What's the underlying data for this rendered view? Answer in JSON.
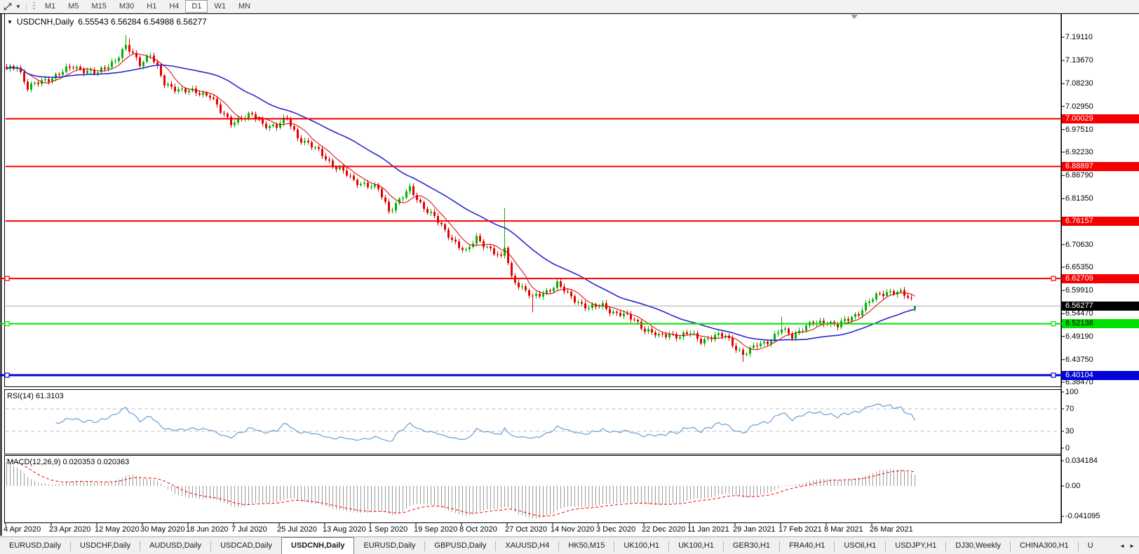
{
  "toolbar": {
    "timeframes": [
      {
        "label": "M1",
        "active": false
      },
      {
        "label": "M5",
        "active": false
      },
      {
        "label": "M15",
        "active": false
      },
      {
        "label": "M30",
        "active": false
      },
      {
        "label": "H1",
        "active": false
      },
      {
        "label": "H4",
        "active": false
      },
      {
        "label": "D1",
        "active": true
      },
      {
        "label": "W1",
        "active": false
      },
      {
        "label": "MN",
        "active": false
      }
    ]
  },
  "chart": {
    "collapse_arrow": "▼",
    "symbol_period": "USDCNH,Daily"
  },
  "chart_data": {
    "type": "candlestick",
    "title": "USDCNH,Daily",
    "current_bar": {
      "open": "6.55543",
      "high": "6.56284",
      "low": "6.54988",
      "close": "6.56277"
    },
    "up_color": "#00b400",
    "down_color": "#e60000",
    "y_axis_ticks": [
      "7.19110",
      "7.13670",
      "7.08230",
      "7.02950",
      "6.97510",
      "6.92230",
      "6.86790",
      "6.81350",
      "6.76070",
      "6.70630",
      "6.65350",
      "6.59910",
      "6.54470",
      "6.49190",
      "6.43750",
      "6.38470"
    ],
    "x_labels": [
      "4 Apr 2020",
      "23 Apr 2020",
      "12 May 2020",
      "30 May 2020",
      "18 Jun 2020",
      "7 Jul 2020",
      "25 Jul 2020",
      "13 Aug 2020",
      "1 Sep 2020",
      "19 Sep 2020",
      "8 Oct 2020",
      "27 Oct 2020",
      "14 Nov 2020",
      "3 Dec 2020",
      "22 Dec 2020",
      "11 Jan 2021",
      "29 Jan 2021",
      "17 Feb 2021",
      "8 Mar 2021",
      "26 Mar 2021"
    ],
    "num_candles": 260,
    "candles_per_x_label": 13,
    "close_trajectory": [
      [
        0,
        7.114
      ],
      [
        3,
        7.125
      ],
      [
        6,
        7.073
      ],
      [
        13,
        7.098
      ],
      [
        19,
        7.122
      ],
      [
        26,
        7.106
      ],
      [
        31,
        7.139
      ],
      [
        34,
        7.168
      ],
      [
        36,
        7.15
      ],
      [
        38,
        7.13
      ],
      [
        41,
        7.152
      ],
      [
        45,
        7.081
      ],
      [
        51,
        7.065
      ],
      [
        58,
        7.057
      ],
      [
        61,
        7.016
      ],
      [
        64,
        6.991
      ],
      [
        67,
        7.004
      ],
      [
        70,
        7.008
      ],
      [
        73,
        6.988
      ],
      [
        77,
        6.983
      ],
      [
        80,
        7.0
      ],
      [
        83,
        6.958
      ],
      [
        86,
        6.942
      ],
      [
        90,
        6.917
      ],
      [
        93,
        6.893
      ],
      [
        96,
        6.876
      ],
      [
        99,
        6.855
      ],
      [
        102,
        6.849
      ],
      [
        106,
        6.835
      ],
      [
        109,
        6.786
      ],
      [
        112,
        6.811
      ],
      [
        115,
        6.835
      ],
      [
        118,
        6.803
      ],
      [
        122,
        6.77
      ],
      [
        125,
        6.737
      ],
      [
        128,
        6.712
      ],
      [
        131,
        6.688
      ],
      [
        134,
        6.721
      ],
      [
        138,
        6.696
      ],
      [
        141,
        6.672
      ],
      [
        142,
        6.7
      ],
      [
        144,
        6.63
      ],
      [
        147,
        6.606
      ],
      [
        150,
        6.581
      ],
      [
        154,
        6.598
      ],
      [
        157,
        6.614
      ],
      [
        160,
        6.59
      ],
      [
        163,
        6.573
      ],
      [
        166,
        6.557
      ],
      [
        170,
        6.565
      ],
      [
        173,
        6.548
      ],
      [
        176,
        6.54
      ],
      [
        179,
        6.532
      ],
      [
        182,
        6.508
      ],
      [
        186,
        6.491
      ],
      [
        189,
        6.499
      ],
      [
        192,
        6.491
      ],
      [
        195,
        6.499
      ],
      [
        198,
        6.483
      ],
      [
        202,
        6.491
      ],
      [
        205,
        6.494
      ],
      [
        208,
        6.466
      ],
      [
        210,
        6.448
      ],
      [
        212,
        6.458
      ],
      [
        214,
        6.474
      ],
      [
        218,
        6.483
      ],
      [
        221,
        6.508
      ],
      [
        224,
        6.494
      ],
      [
        227,
        6.511
      ],
      [
        230,
        6.521
      ],
      [
        234,
        6.527
      ],
      [
        237,
        6.516
      ],
      [
        240,
        6.532
      ],
      [
        243,
        6.548
      ],
      [
        246,
        6.573
      ],
      [
        249,
        6.59
      ],
      [
        252,
        6.598
      ],
      [
        255,
        6.593
      ],
      [
        258,
        6.576
      ],
      [
        259,
        6.563
      ]
    ],
    "spikes": [
      {
        "i": 34,
        "high": 7.196
      },
      {
        "i": 35,
        "high": 7.188
      },
      {
        "i": 142,
        "high": 6.792
      },
      {
        "i": 150,
        "low": 6.548
      },
      {
        "i": 210,
        "low": 6.432
      },
      {
        "i": 221,
        "high": 6.538
      },
      {
        "i": 251,
        "high": 6.603
      }
    ],
    "horizontal_lines": [
      {
        "price": "7.00029",
        "color": "#f40000",
        "text_color": "#ffffff",
        "thickness": 2,
        "full_width": false,
        "selected": false
      },
      {
        "price": "6.88897",
        "color": "#f40000",
        "text_color": "#ffffff",
        "thickness": 2,
        "full_width": false,
        "selected": false
      },
      {
        "price": "6.76157",
        "color": "#f40000",
        "text_color": "#ffffff",
        "thickness": 2,
        "full_width": false,
        "selected": false
      },
      {
        "price": "6.62709",
        "color": "#f40000",
        "text_color": "#ffffff",
        "thickness": 2,
        "full_width": true,
        "selected": true
      },
      {
        "price": "6.52138",
        "color": "#00e000",
        "text_color": "#000000",
        "thickness": 2,
        "full_width": true,
        "selected": true
      },
      {
        "price": "6.40104",
        "color": "#0202d6",
        "text_color": "#ffffff",
        "thickness": 3,
        "full_width": true,
        "selected": true
      }
    ],
    "current_price_line": {
      "price": "6.56277",
      "line_color": "#ababab",
      "badge_bg": "#000000",
      "badge_text": "#ffffff"
    },
    "moving_averages": [
      {
        "name": "fast-ma",
        "period": 7,
        "color": "#d40000",
        "width": 1
      },
      {
        "name": "slow-ma",
        "period": 32,
        "color": "#2727cc",
        "width": 1.6
      }
    ],
    "rsi": {
      "label": "RSI(14) 61.3103",
      "period": 14,
      "current": 61.3103,
      "color": "#5d96d0",
      "axis_levels": [
        100,
        70,
        30,
        0
      ],
      "dashed_levels": [
        70,
        30
      ],
      "level_color": "#bdbdbd"
    },
    "macd": {
      "label": "MACD(12,26,9) 0.020353 0.020363",
      "fast": 12,
      "slow": 26,
      "signal": 9,
      "main_value": 0.020353,
      "signal_value": 0.020363,
      "axis_max": 0.034184,
      "axis_mid": 0.0,
      "axis_min": -0.041095,
      "axis_labels": [
        "0.034184",
        "0.00",
        "-0.041095"
      ],
      "bar_color": "#9b9b9b",
      "signal_color": "#ff0000"
    }
  },
  "tabs": {
    "active_index": 4,
    "items": [
      "EURUSD,Daily",
      "USDCHF,Daily",
      "AUDUSD,Daily",
      "USDCAD,Daily",
      "USDCNH,Daily",
      "EURUSD,Daily",
      "GBPUSD,Daily",
      "XAUUSD,H4",
      "HK50,M15",
      "UK100,H1",
      "UK100,H1",
      "GER30,H1",
      "FRA40,H1",
      "USOil,H1",
      "USDJPY,H1",
      "DJ30,Weekly",
      "CHINA300,H1",
      "U"
    ],
    "scroll_left": "◄",
    "scroll_right": "►"
  }
}
